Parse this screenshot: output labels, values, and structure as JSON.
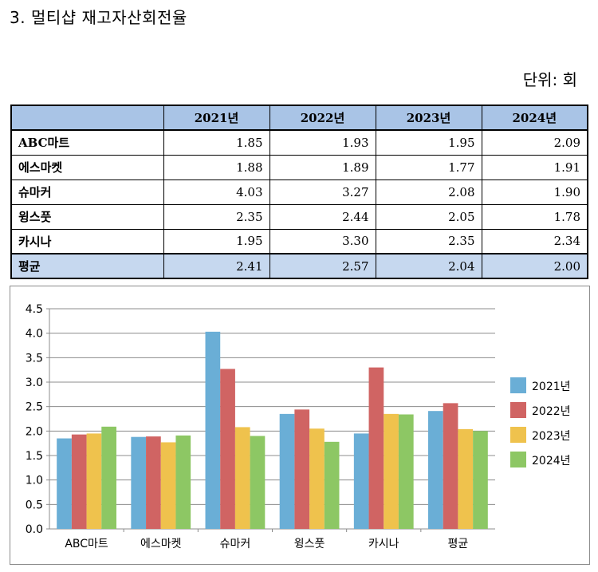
{
  "title": "3. 멀티샵 재고자산회전율",
  "unit": "단위: 회",
  "table": {
    "headers": [
      "",
      "2021년",
      "2022년",
      "2023년",
      "2024년"
    ],
    "rows": [
      {
        "label": "ABC마트",
        "values": [
          "1.85",
          "1.93",
          "1.95",
          "2.09"
        ]
      },
      {
        "label": "에스마켓",
        "values": [
          "1.88",
          "1.89",
          "1.77",
          "1.91"
        ]
      },
      {
        "label": "슈마커",
        "values": [
          "4.03",
          "3.27",
          "2.08",
          "1.90"
        ]
      },
      {
        "label": "윙스풋",
        "values": [
          "2.35",
          "2.44",
          "2.05",
          "1.78"
        ]
      },
      {
        "label": "카시나",
        "values": [
          "1.95",
          "3.30",
          "2.35",
          "2.34"
        ]
      },
      {
        "label": "평균",
        "values": [
          "2.41",
          "2.57",
          "2.04",
          "2.00"
        ]
      }
    ]
  },
  "chart_data": {
    "type": "bar",
    "categories": [
      "ABC마트",
      "에스마켓",
      "슈마커",
      "윙스풋",
      "카시나",
      "평균"
    ],
    "series": [
      {
        "name": "2021년",
        "color": "#6aaed6",
        "values": [
          1.85,
          1.88,
          4.03,
          2.35,
          1.95,
          2.41
        ]
      },
      {
        "name": "2022년",
        "color": "#d06463",
        "values": [
          1.93,
          1.89,
          3.27,
          2.44,
          3.3,
          2.57
        ]
      },
      {
        "name": "2023년",
        "color": "#efc24d",
        "values": [
          1.95,
          1.77,
          2.08,
          2.05,
          2.35,
          2.04
        ]
      },
      {
        "name": "2024년",
        "color": "#8dc764",
        "values": [
          2.09,
          1.91,
          1.9,
          1.78,
          2.34,
          2.0
        ]
      }
    ],
    "yticks": [
      "0.0",
      "0.5",
      "1.0",
      "1.5",
      "2.0",
      "2.5",
      "3.0",
      "3.5",
      "4.0",
      "4.5"
    ],
    "ylim": [
      0,
      4.5
    ],
    "grid": true,
    "legend": "right"
  }
}
